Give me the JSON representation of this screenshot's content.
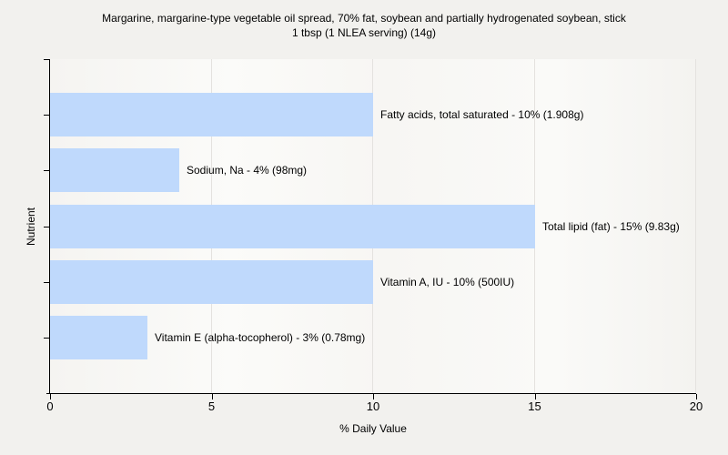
{
  "title": {
    "line1": "Margarine, margarine-type vegetable oil spread, 70% fat, soybean and partially hydrogenated soybean, stick",
    "line2": "1 tbsp (1 NLEA serving) (14g)"
  },
  "axes": {
    "x_label": "% Daily Value",
    "y_label": "Nutrient"
  },
  "colors": {
    "bar_fill": "#bfd9fc",
    "page_background": "#f2f1ee",
    "gridline": "#e4e2df",
    "axis": "#000000",
    "text": "#000000"
  },
  "chart_data": {
    "type": "bar",
    "orientation": "horizontal",
    "title": "Margarine, margarine-type vegetable oil spread, 70% fat, soybean and partially hydrogenated soybean, stick — 1 tbsp (1 NLEA serving) (14g)",
    "xlabel": "% Daily Value",
    "ylabel": "Nutrient",
    "xlim": [
      0,
      20
    ],
    "xticks": [
      0,
      5,
      10,
      15,
      20
    ],
    "grid": "vertical",
    "legend": "none",
    "bar_color": "#bfd9fc",
    "categories": [
      "Fatty acids, total saturated",
      "Sodium, Na",
      "Total lipid (fat)",
      "Vitamin A, IU",
      "Vitamin E (alpha-tocopherol)"
    ],
    "values": [
      10,
      4,
      15,
      10,
      3
    ],
    "amounts": [
      "1.908g",
      "98mg",
      "9.83g",
      "500IU",
      "0.78mg"
    ],
    "bar_labels": [
      "Fatty acids, total saturated - 10% (1.908g)",
      "Sodium, Na - 4% (98mg)",
      "Total lipid (fat) - 15% (9.83g)",
      "Vitamin A, IU - 10% (500IU)",
      "Vitamin E (alpha-tocopherol) - 3% (0.78mg)"
    ]
  }
}
